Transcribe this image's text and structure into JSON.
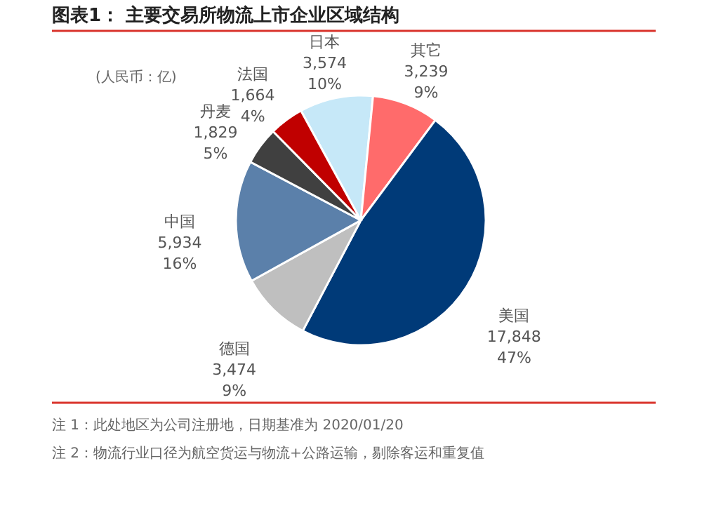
{
  "chart_data": {
    "type": "pie",
    "title": "图表1：  主要交易所物流上市企业区域结构",
    "categories": [
      "日本",
      "其它",
      "美国",
      "德国",
      "中国",
      "丹麦",
      "法国"
    ],
    "values": [
      3574,
      3239,
      17848,
      3474,
      5934,
      1829,
      1664
    ],
    "colors": [
      "#c6e8f8",
      "#ff6b6b",
      "#003a78",
      "#bfbfbf",
      "#5b80aa",
      "#404040",
      "#c00000"
    ],
    "value_labels": [
      "3,574\n10%",
      "3,239\n9%",
      "17,848\n47%",
      "3,474\n9%",
      "5,934\n16%",
      "1,829\n5%",
      "1,664\n4%"
    ],
    "annotations": [
      "(人民币：亿)",
      "注 1：此处地区为公司注册地，日期基准为 2020/01/20",
      "注 2：物流行业口径为航空货运与物流+公路运输，剔除客运和重复值"
    ],
    "legend": false
  }
}
